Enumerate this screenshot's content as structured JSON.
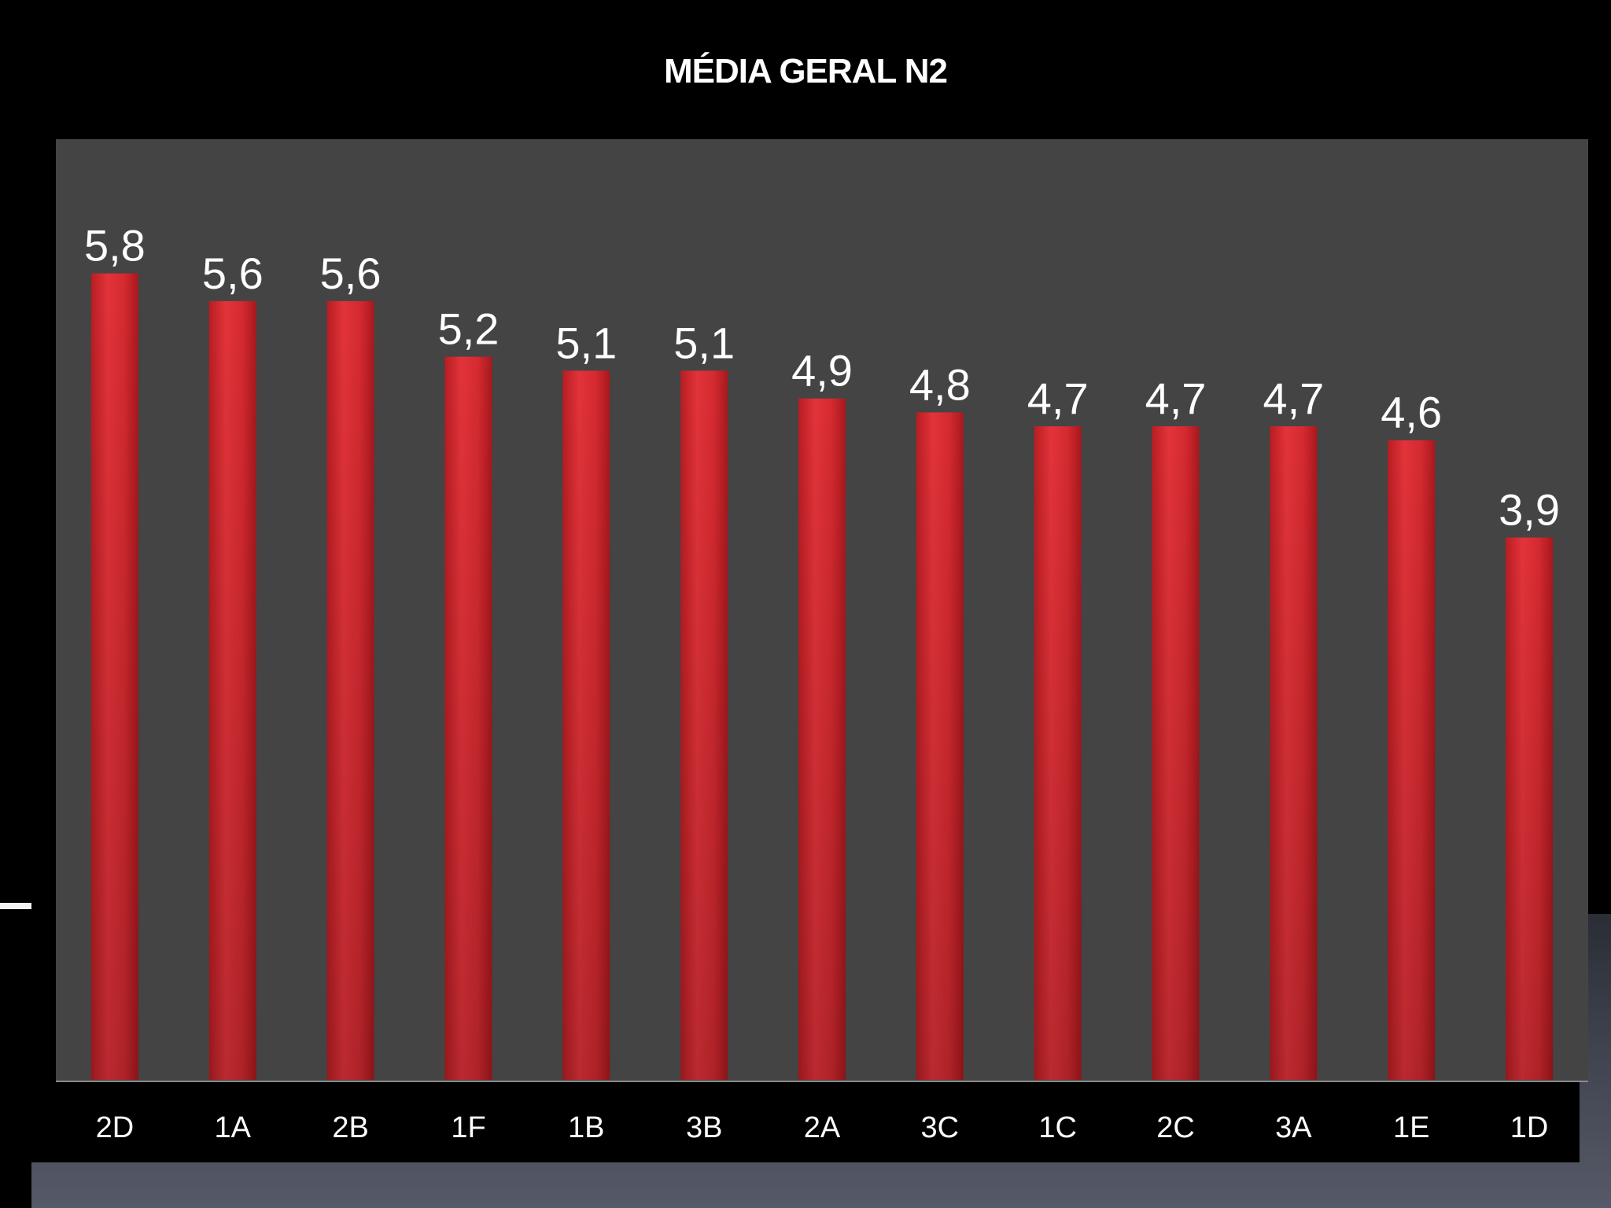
{
  "chart_data": {
    "type": "bar",
    "title": "MÉDIA GERAL N2",
    "xlabel": "",
    "ylabel": "",
    "categories": [
      "2D",
      "1A",
      "2B",
      "1F",
      "1B",
      "3B",
      "2A",
      "3C",
      "1C",
      "2C",
      "3A",
      "1E",
      "1D"
    ],
    "values": [
      5.8,
      5.6,
      5.6,
      5.2,
      5.1,
      5.1,
      4.9,
      4.8,
      4.7,
      4.7,
      4.7,
      4.6,
      3.9
    ],
    "value_labels": [
      "5,8",
      "5,6",
      "5,6",
      "5,2",
      "5,1",
      "5,1",
      "4,9",
      "4,8",
      "4,7",
      "4,7",
      "4,7",
      "4,6",
      "3,9"
    ],
    "ylim": [
      0,
      7
    ],
    "grid": false,
    "legend": "none",
    "colors": {
      "bar": "#d9282d",
      "plot_background": "#444444",
      "page_background": "#000000",
      "text": "#ffffff"
    }
  }
}
